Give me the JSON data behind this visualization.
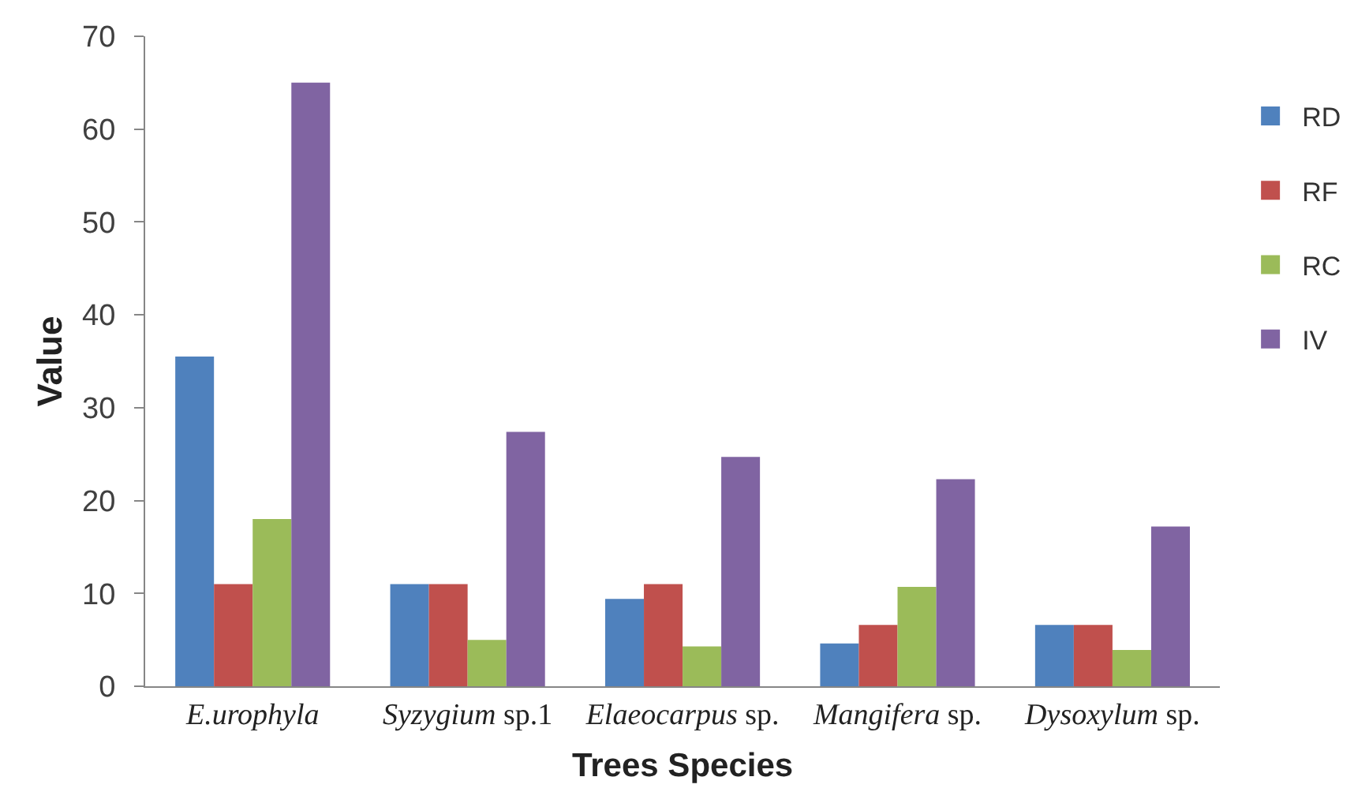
{
  "chart_data": {
    "type": "bar",
    "xlabel": "Trees Species",
    "ylabel": "Value",
    "categories": [
      "E.urophyla",
      "Syzygium sp.1",
      "Elaeocarpus sp.",
      "Mangifera sp.",
      "Dysoxylum sp."
    ],
    "series": [
      {
        "name": "RD",
        "color": "#4f81bd",
        "values": [
          35.5,
          11,
          9.4,
          4.6,
          6.6
        ]
      },
      {
        "name": "RF",
        "color": "#c0504d",
        "values": [
          11,
          11,
          11,
          6.6,
          6.6
        ]
      },
      {
        "name": "RC",
        "color": "#9bbb59",
        "values": [
          18,
          5,
          4.3,
          10.7,
          3.9
        ]
      },
      {
        "name": "IV",
        "color": "#8064a2",
        "values": [
          65,
          27.4,
          24.7,
          22.3,
          17.2
        ]
      }
    ],
    "ylim": [
      0,
      70
    ],
    "yticks": [
      0,
      10,
      20,
      30,
      40,
      50,
      60,
      70
    ],
    "legend": "right"
  }
}
